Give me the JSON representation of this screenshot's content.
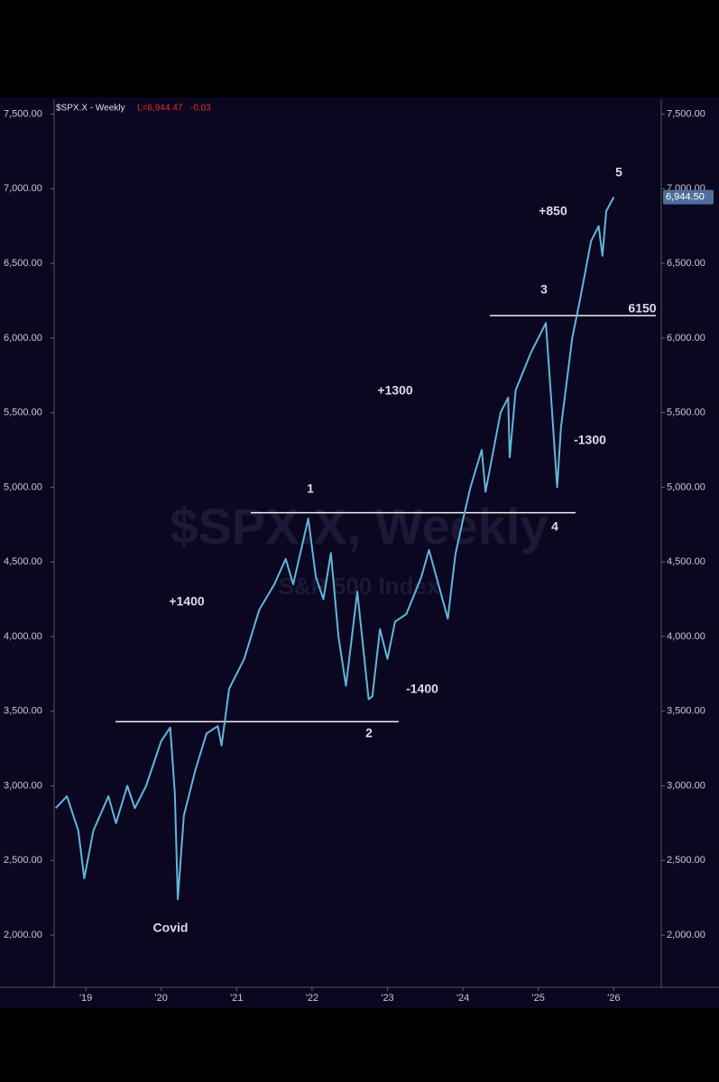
{
  "chart_data": {
    "type": "line",
    "title": "$SPX.X - Weekly",
    "last_label": "L=6,944.47",
    "change_label": "-0.03",
    "watermark": "$SPX.X, Weekly",
    "watermark_sub": "S&P 500 Index",
    "price_box": "6,944.50",
    "x": [
      2018.6,
      2018.75,
      2018.9,
      2018.98,
      2019.1,
      2019.3,
      2019.4,
      2019.55,
      2019.65,
      2019.8,
      2020.0,
      2020.12,
      2020.18,
      2020.22,
      2020.3,
      2020.45,
      2020.6,
      2020.75,
      2020.8,
      2020.9,
      2021.1,
      2021.3,
      2021.5,
      2021.65,
      2021.75,
      2021.95,
      2022.05,
      2022.15,
      2022.25,
      2022.35,
      2022.45,
      2022.6,
      2022.75,
      2022.8,
      2022.9,
      2023.0,
      2023.1,
      2023.25,
      2023.45,
      2023.55,
      2023.8,
      2023.9,
      2024.0,
      2024.1,
      2024.25,
      2024.3,
      2024.5,
      2024.6,
      2024.62,
      2024.7,
      2024.9,
      2025.0,
      2025.1,
      2025.17,
      2025.25,
      2025.3,
      2025.45,
      2025.55,
      2025.7,
      2025.8,
      2025.85,
      2025.9,
      2026.0
    ],
    "series": [
      {
        "name": "$SPX.X",
        "color": "#62b6d8",
        "values": [
          2850,
          2930,
          2700,
          2380,
          2700,
          2930,
          2750,
          3000,
          2850,
          3000,
          3300,
          3390,
          2950,
          2240,
          2800,
          3100,
          3350,
          3400,
          3270,
          3650,
          3850,
          4180,
          4350,
          4520,
          4350,
          4790,
          4400,
          4250,
          4560,
          4000,
          3670,
          4300,
          3580,
          3600,
          4050,
          3850,
          4100,
          4150,
          4400,
          4580,
          4120,
          4550,
          4780,
          5000,
          5250,
          4970,
          5500,
          5600,
          5200,
          5650,
          5900,
          6000,
          6100,
          5600,
          5000,
          5400,
          6000,
          6250,
          6650,
          6750,
          6550,
          6850,
          6944
        ]
      }
    ],
    "levels": [
      3430,
      4830,
      6150
    ],
    "annotations": [
      "Covid",
      "+1400",
      "-1400",
      "+1300",
      "-1300",
      "+850",
      "1",
      "2",
      "3",
      "4",
      "5"
    ],
    "xlim": [
      2018.58,
      2026.63
    ],
    "xticks": [
      {
        "value": 2019,
        "label": "'19"
      },
      {
        "value": 2020,
        "label": "'20"
      },
      {
        "value": 2021,
        "label": "'21"
      },
      {
        "value": 2022,
        "label": "'22"
      },
      {
        "value": 2023,
        "label": "'23"
      },
      {
        "value": 2024,
        "label": "'24"
      },
      {
        "value": 2025,
        "label": "'25"
      },
      {
        "value": 2026,
        "label": "'26"
      }
    ],
    "ylim": [
      1650,
      7600
    ],
    "yticks": [
      {
        "value": 2000,
        "label": "2,000.00"
      },
      {
        "value": 2500,
        "label": "2,500.00"
      },
      {
        "value": 3000,
        "label": "3,000.00"
      },
      {
        "value": 3500,
        "label": "3,500.00"
      },
      {
        "value": 4000,
        "label": "4,000.00"
      },
      {
        "value": 4500,
        "label": "4,500.00"
      },
      {
        "value": 5000,
        "label": "5,000.00"
      },
      {
        "value": 5500,
        "label": "5,500.00"
      },
      {
        "value": 6000,
        "label": "6,000.00"
      },
      {
        "value": 6500,
        "label": "6,500.00"
      },
      {
        "value": 7000,
        "label": "7,000.00"
      },
      {
        "value": 7500,
        "label": "7,500.00"
      }
    ]
  }
}
